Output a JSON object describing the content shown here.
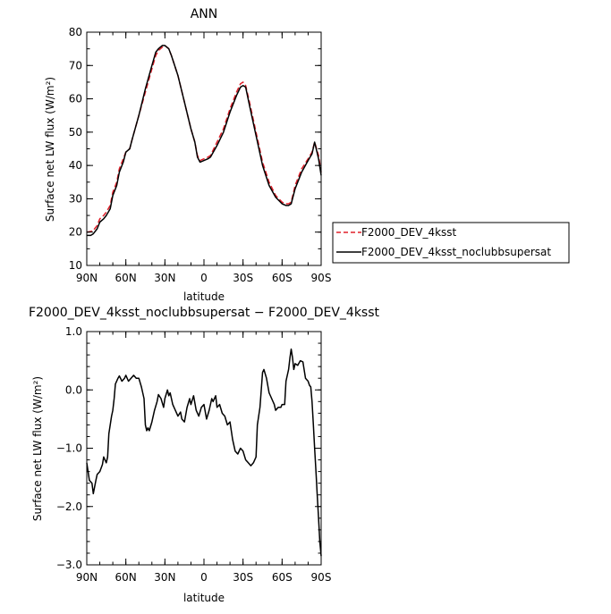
{
  "chart_data": [
    {
      "type": "line",
      "title": "ANN",
      "xlabel": "latitude",
      "ylabel": "Surface net LW flux (W/m²)",
      "xlim": [
        90,
        -90
      ],
      "ylim": [
        10,
        80
      ],
      "x_ticks": [
        {
          "v": 90,
          "label": "90N"
        },
        {
          "v": 60,
          "label": "60N"
        },
        {
          "v": 30,
          "label": "30N"
        },
        {
          "v": 0,
          "label": "0"
        },
        {
          "v": -30,
          "label": "30S"
        },
        {
          "v": -60,
          "label": "60S"
        },
        {
          "v": -90,
          "label": "90S"
        }
      ],
      "y_ticks": [
        10,
        20,
        30,
        40,
        50,
        60,
        70,
        80
      ],
      "legend": "right",
      "series": [
        {
          "name": "F2000_DEV_4ksst",
          "color": "#e0202a",
          "dash": true,
          "x": [
            90,
            87,
            85,
            82,
            80,
            77,
            75,
            72,
            70,
            67,
            65,
            62,
            60,
            57,
            55,
            50,
            45,
            40,
            37,
            35,
            32,
            30,
            27,
            25,
            20,
            15,
            10,
            7,
            5,
            3,
            0,
            -3,
            -5,
            -10,
            -15,
            -20,
            -25,
            -28,
            -30,
            -32,
            -35,
            -40,
            -45,
            -50,
            -55,
            -60,
            -63,
            -65,
            -67,
            -70,
            -75,
            -80,
            -83,
            -85,
            -88,
            -90
          ],
          "values": [
            20,
            20.2,
            20.5,
            22,
            24,
            25,
            26,
            28,
            32,
            35,
            39,
            42,
            44,
            45,
            48,
            55,
            62,
            69,
            73,
            74.5,
            75.5,
            76,
            75,
            73,
            67,
            59,
            51,
            47,
            43,
            41.5,
            42,
            42.5,
            43,
            47,
            51,
            57,
            62,
            64.5,
            65,
            64,
            59,
            50,
            41,
            35,
            31,
            29,
            28.5,
            28.5,
            29,
            34,
            39,
            42,
            44,
            47,
            43,
            38
          ]
        },
        {
          "name": "F2000_DEV_4ksst_noclubbsupersat",
          "color": "#000000",
          "dash": false,
          "x": [
            90,
            87,
            85,
            82,
            80,
            77,
            75,
            72,
            70,
            67,
            65,
            62,
            60,
            57,
            55,
            50,
            45,
            40,
            37,
            35,
            32,
            30,
            27,
            25,
            20,
            15,
            10,
            7,
            5,
            3,
            0,
            -3,
            -5,
            -10,
            -15,
            -20,
            -25,
            -28,
            -30,
            -32,
            -35,
            -40,
            -45,
            -50,
            -55,
            -60,
            -63,
            -65,
            -67,
            -70,
            -75,
            -80,
            -83,
            -85,
            -88,
            -90
          ],
          "values": [
            19,
            19,
            19.5,
            21,
            23,
            24,
            25,
            27,
            31,
            34,
            38,
            41,
            44,
            45,
            48,
            55,
            63,
            70,
            74,
            75,
            76,
            76,
            75,
            73,
            67,
            59,
            51,
            47,
            42.5,
            41,
            41.5,
            42,
            42.5,
            46,
            50,
            56,
            61,
            63.5,
            64,
            63.5,
            58,
            49,
            40,
            34,
            30.5,
            28.5,
            28,
            28,
            28.5,
            33,
            38,
            41.5,
            43.5,
            47,
            42,
            37
          ]
        }
      ]
    },
    {
      "type": "line",
      "title": "F2000_DEV_4ksst_noclubbsupersat − F2000_DEV_4ksst",
      "xlabel": "latitude",
      "ylabel": "Surface net LW flux (W/m²)",
      "xlim": [
        90,
        -90
      ],
      "ylim": [
        -3.0,
        1.0
      ],
      "x_ticks": [
        {
          "v": 90,
          "label": "90N"
        },
        {
          "v": 60,
          "label": "60N"
        },
        {
          "v": 30,
          "label": "30N"
        },
        {
          "v": 0,
          "label": "0"
        },
        {
          "v": -30,
          "label": "30S"
        },
        {
          "v": -60,
          "label": "60S"
        },
        {
          "v": -90,
          "label": "90S"
        }
      ],
      "y_ticks": [
        {
          "v": 1.0,
          "label": "1.0"
        },
        {
          "v": 0.0,
          "label": "0.0"
        },
        {
          "v": -1.0,
          "label": "−1.0"
        },
        {
          "v": -2.0,
          "label": "−2.0"
        },
        {
          "v": -3.0,
          "label": "−3.0"
        }
      ],
      "series": [
        {
          "name": "",
          "color": "#000000",
          "dash": false,
          "x": [
            90,
            88,
            86,
            85,
            83,
            82,
            80,
            78,
            77,
            75,
            74,
            73,
            71,
            70,
            69,
            68,
            66,
            65,
            63,
            61,
            60,
            58,
            56,
            54,
            52,
            50,
            48,
            46,
            45,
            44,
            43,
            42,
            40,
            38,
            36,
            35,
            33,
            31,
            30,
            28,
            27,
            26,
            24,
            22,
            20,
            18,
            17,
            15,
            13,
            11,
            10,
            8,
            6,
            4,
            2,
            0,
            -2,
            -4,
            -6,
            -7,
            -9,
            -10,
            -12,
            -14,
            -16,
            -18,
            -20,
            -22,
            -24,
            -26,
            -28,
            -30,
            -32,
            -34,
            -36,
            -38,
            -40,
            -41,
            -43,
            -45,
            -46,
            -48,
            -50,
            -52,
            -54,
            -55,
            -57,
            -59,
            -60,
            -62,
            -63,
            -65,
            -66,
            -67,
            -68,
            -69,
            -70,
            -72,
            -74,
            -76,
            -78,
            -80,
            -81,
            -82,
            -83,
            -84,
            -85,
            -86,
            -87,
            -88,
            -89,
            -90
          ],
          "values": [
            -1.25,
            -1.55,
            -1.6,
            -1.78,
            -1.55,
            -1.45,
            -1.4,
            -1.28,
            -1.15,
            -1.25,
            -1.15,
            -0.75,
            -0.45,
            -0.35,
            -0.15,
            0.1,
            0.2,
            0.24,
            0.15,
            0.2,
            0.25,
            0.15,
            0.2,
            0.25,
            0.2,
            0.2,
            0.05,
            -0.15,
            -0.6,
            -0.7,
            -0.65,
            -0.7,
            -0.55,
            -0.35,
            -0.2,
            -0.08,
            -0.15,
            -0.3,
            -0.15,
            0.0,
            -0.1,
            -0.05,
            -0.25,
            -0.35,
            -0.45,
            -0.38,
            -0.5,
            -0.55,
            -0.3,
            -0.15,
            -0.25,
            -0.1,
            -0.35,
            -0.45,
            -0.3,
            -0.25,
            -0.5,
            -0.35,
            -0.15,
            -0.2,
            -0.1,
            -0.3,
            -0.25,
            -0.4,
            -0.45,
            -0.6,
            -0.55,
            -0.85,
            -1.05,
            -1.1,
            -1.0,
            -1.05,
            -1.2,
            -1.25,
            -1.3,
            -1.25,
            -1.15,
            -0.6,
            -0.3,
            0.3,
            0.35,
            0.2,
            -0.05,
            -0.15,
            -0.25,
            -0.35,
            -0.3,
            -0.3,
            -0.25,
            -0.25,
            0.15,
            0.35,
            0.55,
            0.7,
            0.55,
            0.35,
            0.45,
            0.42,
            0.5,
            0.48,
            0.2,
            0.15,
            0.08,
            0.05,
            -0.2,
            -0.6,
            -1.0,
            -1.4,
            -1.8,
            -2.2,
            -2.6,
            -2.85
          ]
        }
      ]
    }
  ]
}
